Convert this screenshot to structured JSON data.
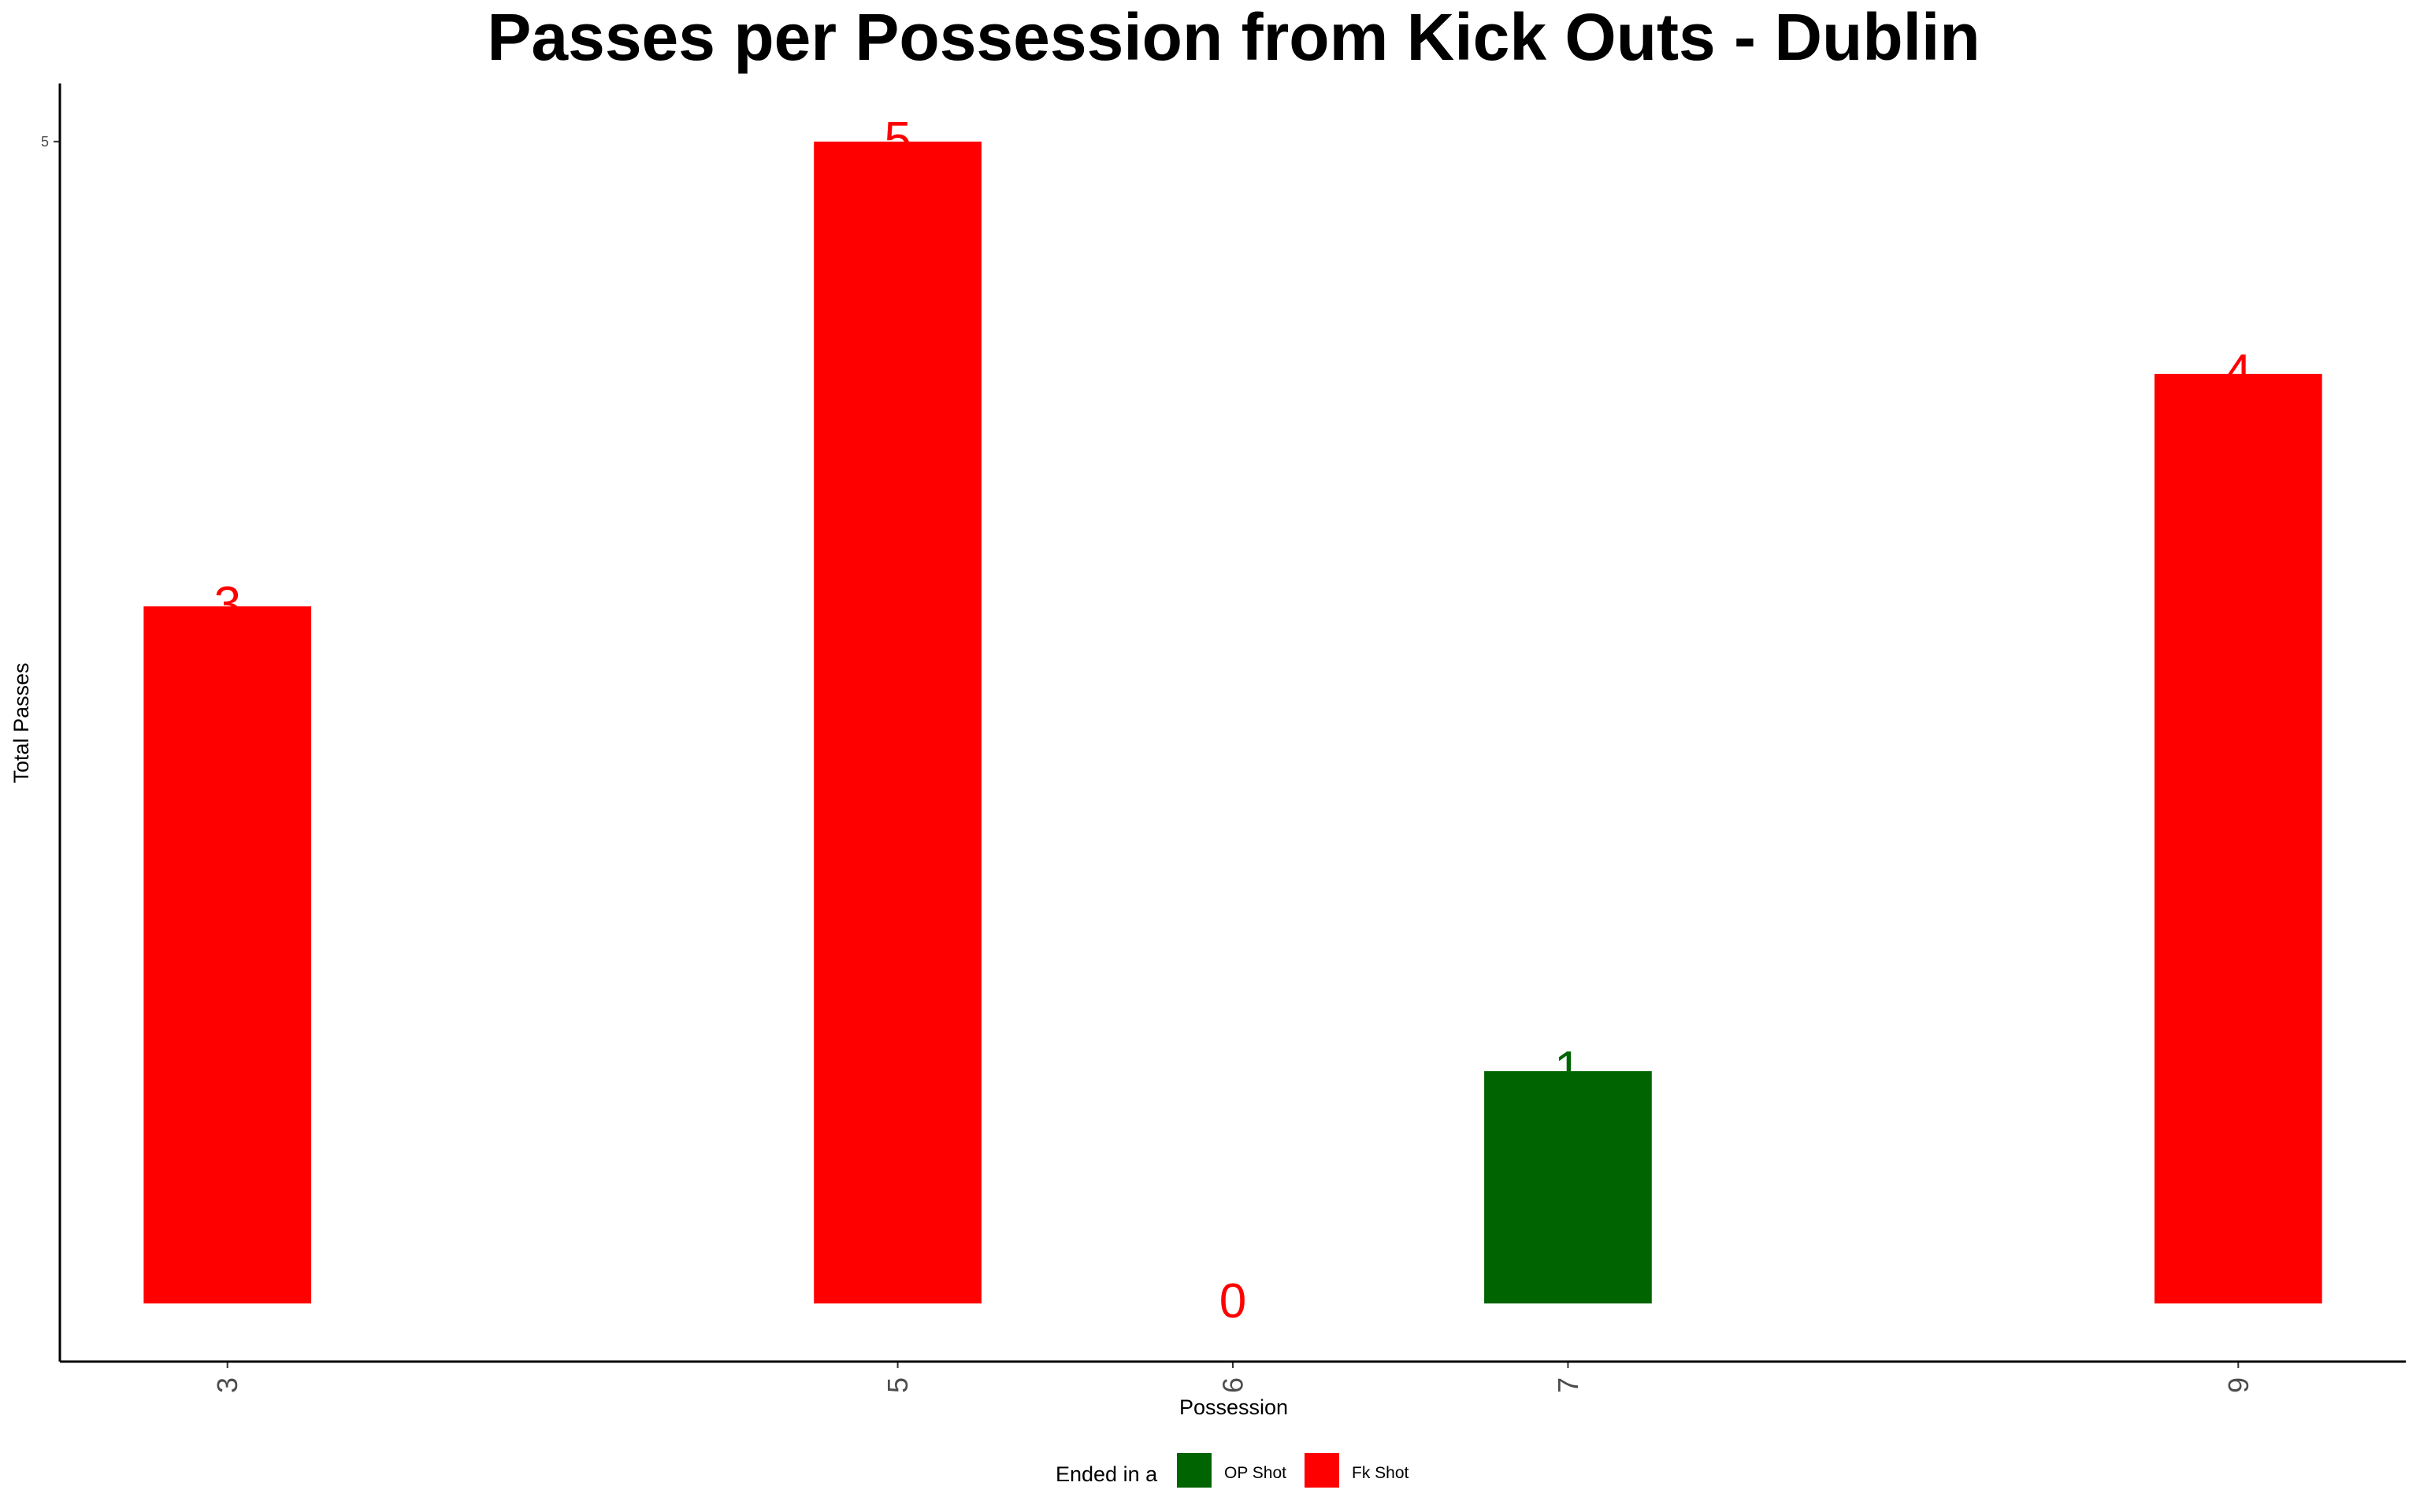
{
  "chart_data": {
    "type": "bar",
    "title": "Passes per Possession from Kick Outs - Dublin",
    "xlabel": "Possession",
    "ylabel": "Total Passes",
    "categories": [
      "3",
      "5",
      "6",
      "7",
      "9"
    ],
    "values": [
      3,
      5,
      0,
      1,
      4
    ],
    "fill_groups": [
      "Fk Shot",
      "Fk Shot",
      "Fk Shot",
      "OP Shot",
      "Fk Shot"
    ],
    "data_labels": [
      "3",
      "5",
      "0",
      "1",
      "4"
    ],
    "y_ticks": [
      5
    ],
    "ylim": [
      -0.25,
      5.25
    ],
    "grid": false,
    "legend": {
      "title": "Ended in a",
      "position": "bottom",
      "entries": [
        {
          "name": "OP Shot",
          "color": "#006400"
        },
        {
          "name": "Fk Shot",
          "color": "#FF0000"
        }
      ]
    },
    "colors": {
      "OP Shot": "#006400",
      "Fk Shot": "#FF0000"
    }
  }
}
